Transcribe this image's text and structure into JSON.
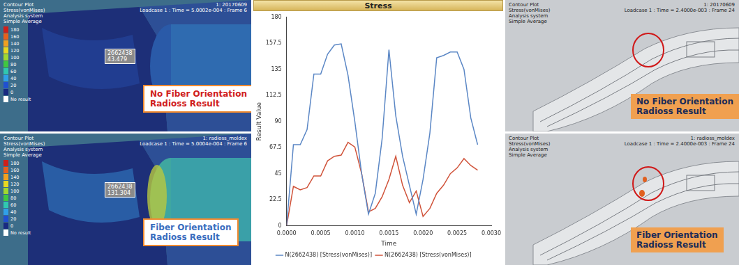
{
  "chart_data": {
    "type": "line",
    "title": "Stress",
    "x_label": "Time",
    "y_label": "Result Value",
    "x": [
      0,
      0.0001,
      0.0002,
      0.0003,
      0.0004,
      0.0005,
      0.0006,
      0.0007,
      0.0008,
      0.0009,
      0.001,
      0.0011,
      0.0012,
      0.0013,
      0.0014,
      0.0015,
      0.0016,
      0.0017,
      0.0018,
      0.0019,
      0.002,
      0.0021,
      0.0022,
      0.0023,
      0.0024,
      0.0025,
      0.0026,
      0.0027,
      0.0028
    ],
    "series": [
      {
        "name": "N(2662438) [Stress(vonMises)]",
        "color": "#5b87c5",
        "values": [
          0,
          70,
          70,
          83,
          131,
          131,
          148,
          156,
          157,
          130,
          90,
          45,
          10,
          28,
          75,
          152,
          95,
          60,
          35,
          10,
          40,
          80,
          145,
          147,
          150,
          150,
          135,
          93,
          70
        ]
      },
      {
        "name": "N(2662438) [Stress(vonMises)]",
        "color": "#d0533a",
        "values": [
          0,
          34,
          31,
          33,
          43,
          43,
          56,
          60,
          61,
          72,
          68,
          45,
          12,
          15,
          25,
          40,
          60,
          35,
          20,
          30,
          8,
          15,
          28,
          35,
          45,
          50,
          58,
          52,
          48
        ]
      }
    ],
    "xlim": [
      0,
      0.003
    ],
    "xticks": [
      {
        "value": 0,
        "label": "0.0000"
      },
      {
        "value": 0.0005,
        "label": "0.0005"
      },
      {
        "value": 0.001,
        "label": "0.0010"
      },
      {
        "value": 0.0015,
        "label": "0.0015"
      },
      {
        "value": 0.002,
        "label": "0.0020"
      },
      {
        "value": 0.0025,
        "label": "0.0025"
      },
      {
        "value": 0.003,
        "label": "0.0030"
      }
    ],
    "ylim": [
      0,
      180
    ],
    "yticks": [
      0,
      22.5,
      45,
      67.5,
      90,
      112.5,
      135,
      157.5,
      180
    ],
    "grid": false,
    "legend": "bottom"
  },
  "panels": [
    {
      "header": [
        "Contour Plot",
        "Stress(vonMises)",
        "Analysis system",
        "Simple Average"
      ],
      "model": "1: 20170609",
      "info": "Loadcase 1 : Time = 5.0002e-004 : Frame 6",
      "scale": [
        180,
        160,
        140,
        120,
        100,
        80,
        60,
        40,
        20,
        0
      ],
      "no_result": "No result",
      "node": "2662438",
      "node_value": "43.479",
      "caption": [
        "No Fiber Orientation",
        "Radioss Result"
      ]
    },
    {
      "header": [
        "Contour Plot",
        "Stress(vonMises)",
        "Analysis system",
        "Simple Average"
      ],
      "model": "1: radioss_moldex",
      "info": "Loadcase 1 : Time = 5.0004e-004 : Frame 6",
      "scale": [
        180,
        160,
        140,
        120,
        100,
        80,
        60,
        40,
        20,
        0
      ],
      "no_result": "No result",
      "node": "2662438",
      "node_value": "131.304",
      "caption": [
        "Fiber Orientation",
        "Radioss Result"
      ]
    },
    {
      "header": [
        "Contour Plot",
        "Stress(vonMises)",
        "Analysis system",
        "Simple Average"
      ],
      "model": "1: 20170609",
      "info": "Loadcase 1 : Time = 2.4000e-003 : Frame 24",
      "caption": [
        "No Fiber Orientation",
        "Radioss Result"
      ]
    },
    {
      "header": [
        "Contour Plot",
        "Stress(vonMises)",
        "Analysis system",
        "Simple Average"
      ],
      "model": "1: radioss_moldex",
      "info": "Loadcase 1 : Time = 2.4000e-003 : Frame 24",
      "caption": [
        "Fiber Orientation",
        "Radioss Result"
      ]
    }
  ]
}
